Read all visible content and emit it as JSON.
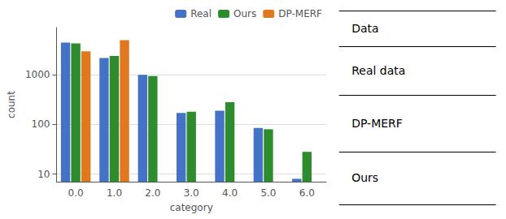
{
  "chart_data": {
    "type": "bar",
    "categories": [
      "0.0",
      "1.0",
      "2.0",
      "3.0",
      "4.0",
      "5.0",
      "6.0"
    ],
    "series": [
      {
        "name": "Real",
        "color": "#4472c4",
        "values": [
          4500,
          2200,
          1000,
          170,
          190,
          85,
          8
        ]
      },
      {
        "name": "Ours",
        "color": "#2e8b2e",
        "values": [
          4300,
          2400,
          950,
          180,
          280,
          80,
          28
        ]
      },
      {
        "name": "DP-MERF",
        "color": "#e07820",
        "values": [
          3000,
          5000,
          null,
          null,
          null,
          null,
          null
        ]
      }
    ],
    "xlabel": "category",
    "ylabel": "count",
    "log": "y",
    "ylim": [
      7,
      9000
    ],
    "yticks": [
      10,
      100,
      1000
    ],
    "grid": true,
    "legend": "upper right",
    "annotations": [
      "Data",
      "Real data",
      "DP-MERF",
      "Ours"
    ]
  }
}
